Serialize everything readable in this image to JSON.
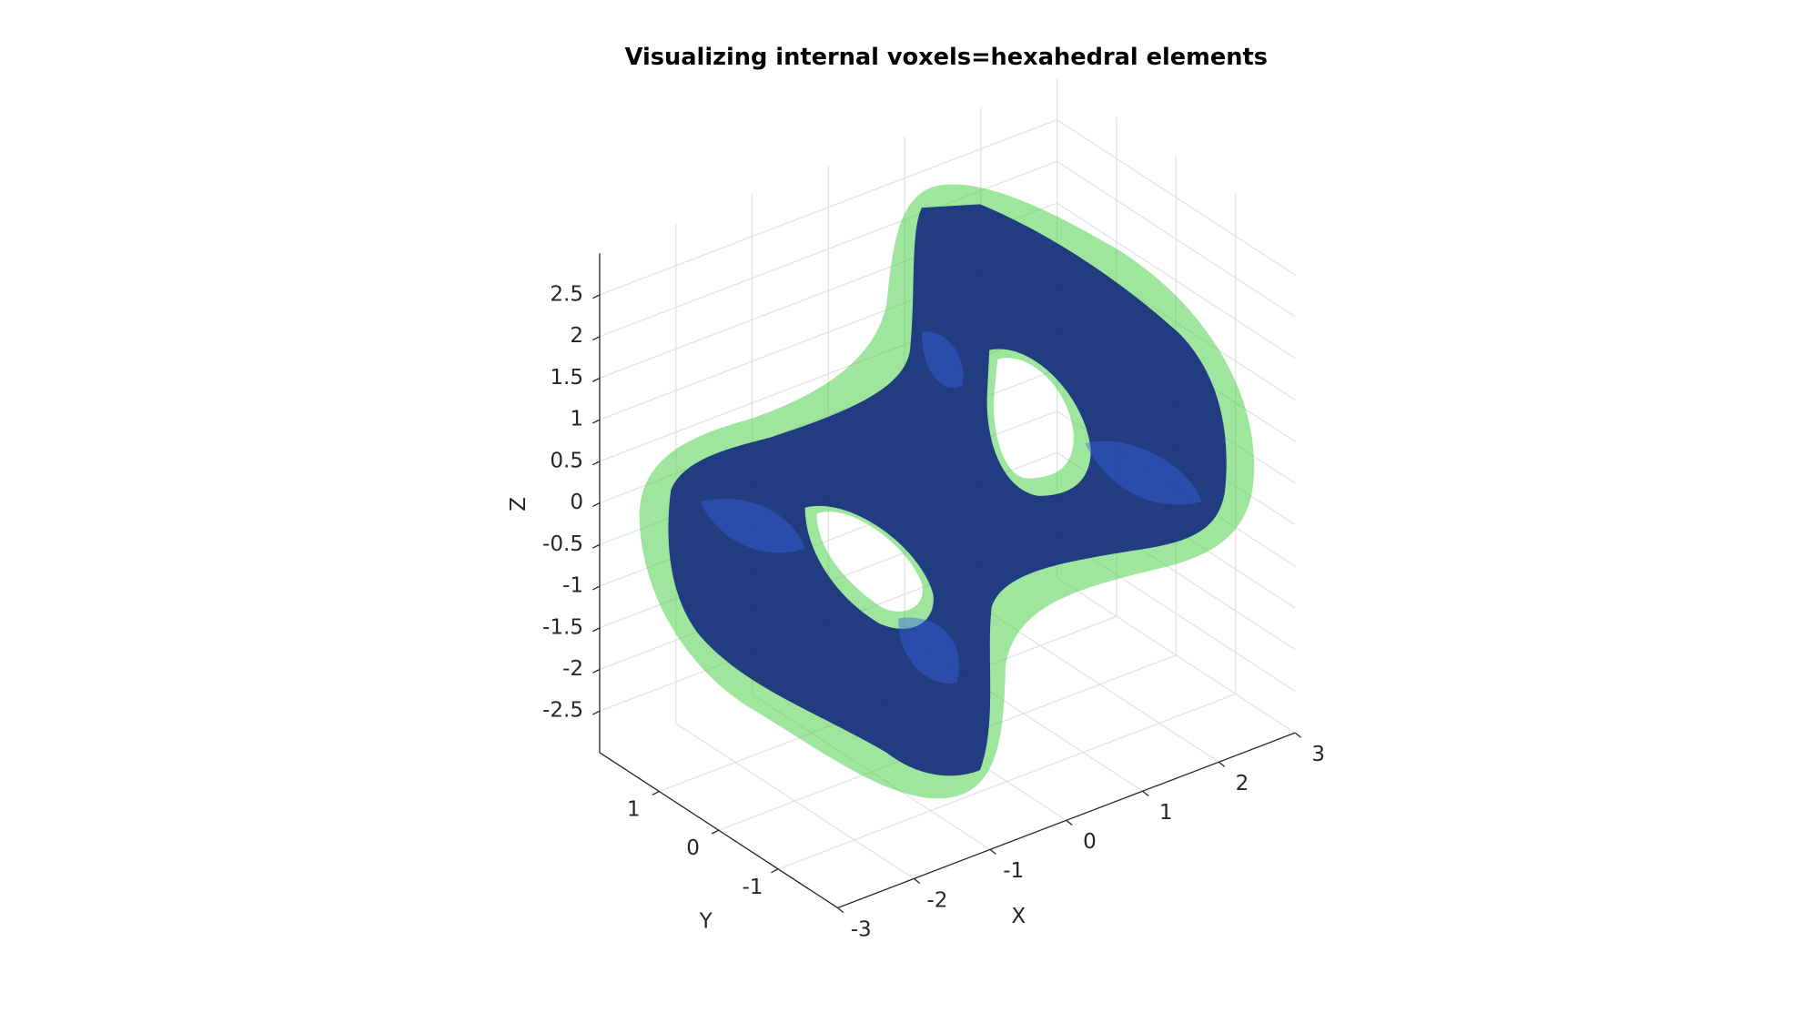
{
  "chart_data": {
    "type": "surface3d",
    "title": "Visualizing internal voxels=hexahedral elements",
    "xlabel": "X",
    "ylabel": "Y",
    "zlabel": "Z",
    "xlim": [
      -3,
      3
    ],
    "xticks": [
      -3,
      -2,
      -1,
      0,
      1,
      2,
      3
    ],
    "ylim": [
      -2,
      2
    ],
    "yticks": [
      -1,
      0,
      1
    ],
    "zlim": [
      -3,
      3
    ],
    "zticks": [
      -2.5,
      -2,
      -1.5,
      -1,
      -0.5,
      0,
      0.5,
      1,
      1.5,
      2,
      2.5
    ],
    "grid": true
  }
}
